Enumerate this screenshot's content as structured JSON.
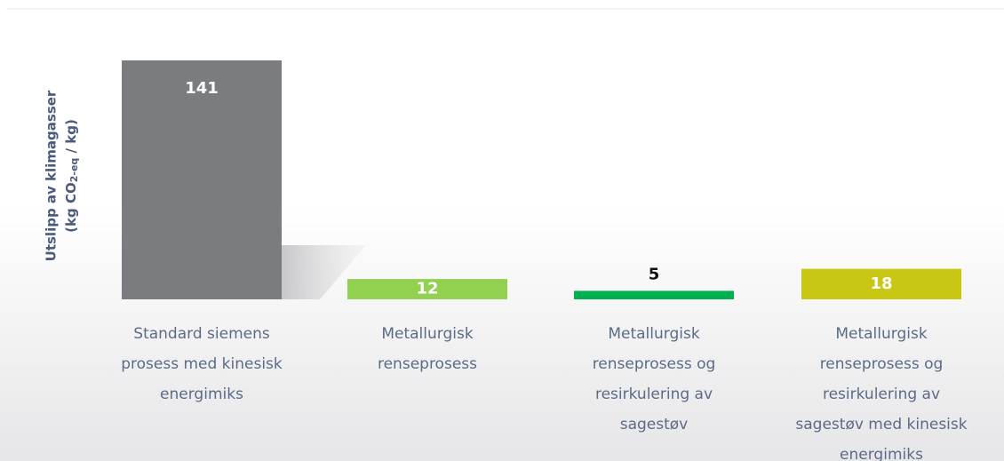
{
  "chart_data": {
    "type": "bar",
    "y_label": {
      "line1": "Utslipp av klimagasser",
      "line2_parts": [
        "(kg CO",
        "2-eq",
        " / kg)"
      ]
    },
    "categories": [
      [
        "Standard siemens",
        "prosess med kinesisk",
        "energimiks"
      ],
      [
        "Metallurgisk",
        "renseprosess"
      ],
      [
        "Metallurgisk",
        "renseprosess og",
        "resirkulering av",
        "sagestøv"
      ],
      [
        "Metallurgisk",
        "renseprosess og",
        "resirkulering av",
        "sagestøv med kinesisk",
        "energimiks"
      ]
    ],
    "values": [
      141,
      12,
      5,
      18
    ],
    "colors": [
      "#7b7c80",
      "#92d050",
      "#00b050",
      "#c8c814"
    ],
    "value_label_colors": [
      "#ffffff",
      "#ffffff",
      "#111111",
      "#ffffff"
    ]
  }
}
